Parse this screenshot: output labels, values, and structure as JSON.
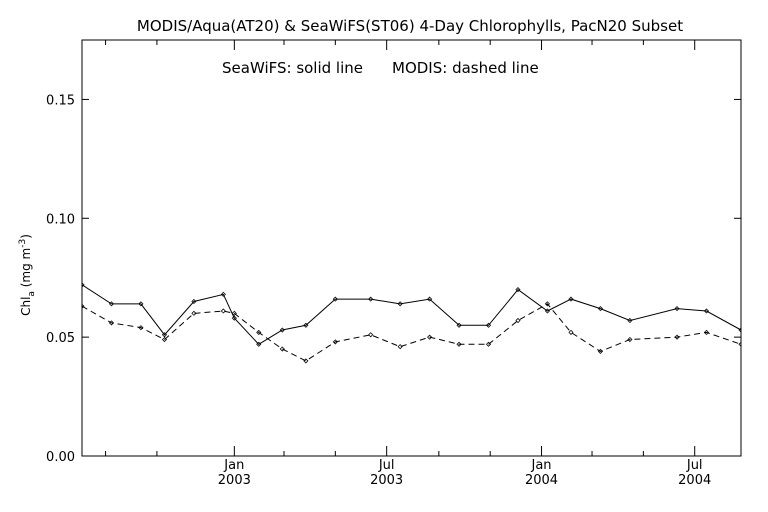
{
  "chart_data": {
    "type": "line",
    "title": "MODIS/Aqua(AT20) & SeaWiFS(ST06) 4-Day Chlorophylls, PacN20 Subset",
    "annotation_left": "SeaWiFS: solid line",
    "annotation_right": "MODIS: dashed line",
    "ylabel": {
      "main": "Chl",
      "sub": "a",
      "unit_open": " (mg m",
      "sup": "-3",
      "unit_close": ")"
    },
    "ylim": [
      0.0,
      0.175
    ],
    "xlim": [
      "2002-07-04",
      "2004-08-25"
    ],
    "y_ticks": [
      {
        "value": 0.0,
        "label": "0.00"
      },
      {
        "value": 0.05,
        "label": "0.05"
      },
      {
        "value": 0.1,
        "label": "0.10"
      },
      {
        "value": 0.15,
        "label": "0.15"
      }
    ],
    "x_major_ticks": [
      {
        "date": "2003-01-01",
        "label1": "Jan",
        "label2": "2003"
      },
      {
        "date": "2003-07-01",
        "label1": "Jul",
        "label2": "2003"
      },
      {
        "date": "2004-01-01",
        "label1": "Jan",
        "label2": "2004"
      },
      {
        "date": "2004-07-01",
        "label1": "Jul",
        "label2": "2004"
      }
    ],
    "x_minor_ticks": [
      "2002-08-01",
      "2002-10-01",
      "2003-03-01",
      "2003-05-01",
      "2003-09-01",
      "2003-11-01",
      "2004-03-01",
      "2004-05-01"
    ],
    "grid": false,
    "series": [
      {
        "name": "SeaWiFS",
        "style": "solid",
        "color": "#000000",
        "x": [
          "2002-07-04",
          "2002-08-08",
          "2002-09-12",
          "2002-10-10",
          "2002-11-14",
          "2002-12-19",
          "2003-01-01",
          "2003-01-30",
          "2003-02-27",
          "2003-03-27",
          "2003-05-01",
          "2003-06-12",
          "2003-07-17",
          "2003-08-21",
          "2003-09-25",
          "2003-10-30",
          "2003-12-04",
          "2004-01-08",
          "2004-02-05",
          "2004-03-11",
          "2004-04-15",
          "2004-06-10",
          "2004-07-15",
          "2004-08-25"
        ],
        "y": [
          0.072,
          0.064,
          0.064,
          0.051,
          0.065,
          0.068,
          0.058,
          0.047,
          0.053,
          0.055,
          0.066,
          0.066,
          0.064,
          0.066,
          0.055,
          0.055,
          0.07,
          0.061,
          0.066,
          0.062,
          0.057,
          0.062,
          0.061,
          0.053
        ]
      },
      {
        "name": "MODIS",
        "style": "dashed",
        "color": "#000000",
        "x": [
          "2002-07-04",
          "2002-08-08",
          "2002-09-12",
          "2002-10-10",
          "2002-11-14",
          "2002-12-19",
          "2003-01-01",
          "2003-01-30",
          "2003-02-27",
          "2003-03-27",
          "2003-05-01",
          "2003-06-12",
          "2003-07-17",
          "2003-08-21",
          "2003-09-25",
          "2003-10-30",
          "2003-12-04",
          "2004-01-08",
          "2004-02-05",
          "2004-03-11",
          "2004-04-15",
          "2004-06-10",
          "2004-07-15",
          "2004-08-25"
        ],
        "y": [
          0.063,
          0.056,
          0.054,
          0.049,
          0.06,
          0.061,
          0.06,
          0.052,
          0.045,
          0.04,
          0.048,
          0.051,
          0.046,
          0.05,
          0.047,
          0.047,
          0.057,
          0.064,
          0.052,
          0.044,
          0.049,
          0.05,
          0.052,
          0.047
        ]
      }
    ]
  }
}
